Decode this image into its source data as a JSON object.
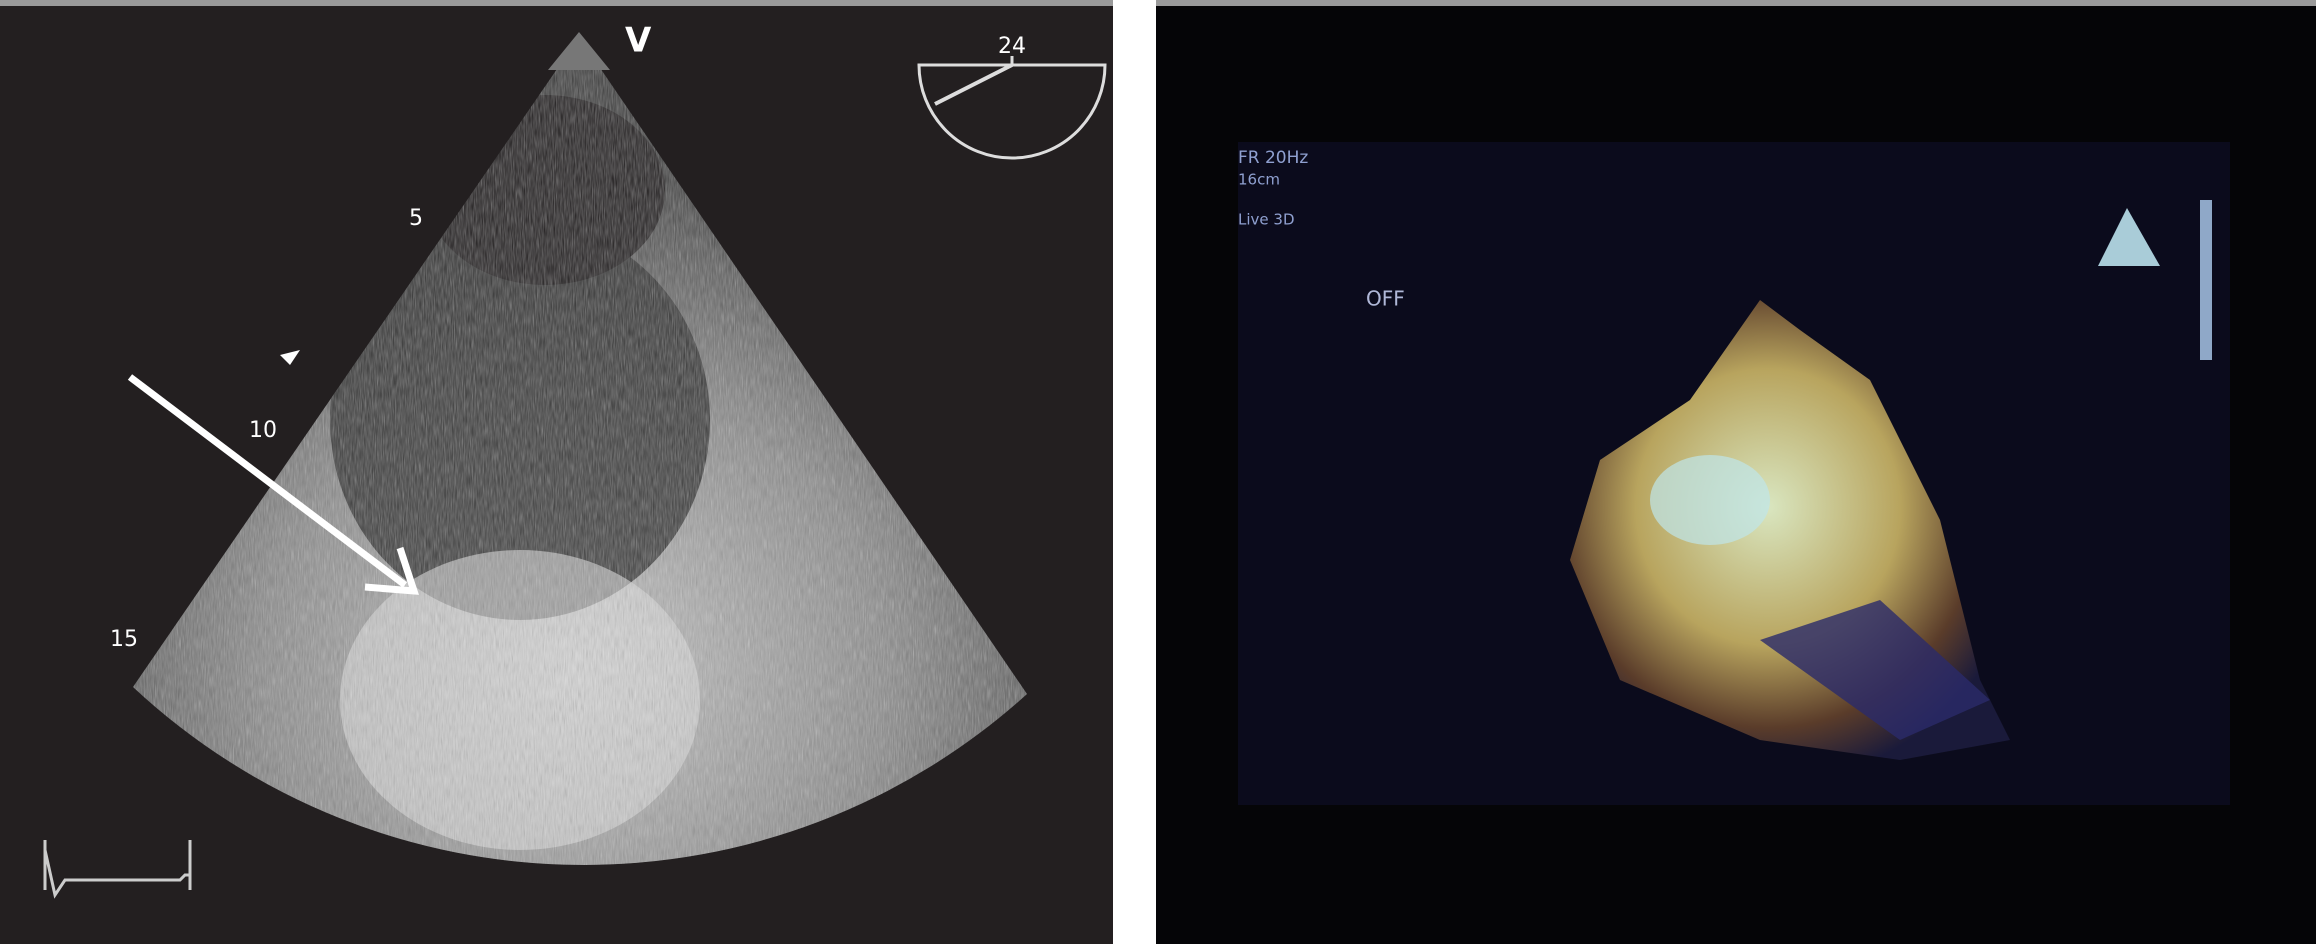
{
  "left_panel": {
    "orientation_label": "V",
    "angle": "24",
    "depth_labels": [
      "5",
      "10",
      "15"
    ]
  },
  "right_panel": {
    "labels": [
      "FR 20Hz",
      "16cm",
      "Live 3D",
      "OFF"
    ]
  }
}
